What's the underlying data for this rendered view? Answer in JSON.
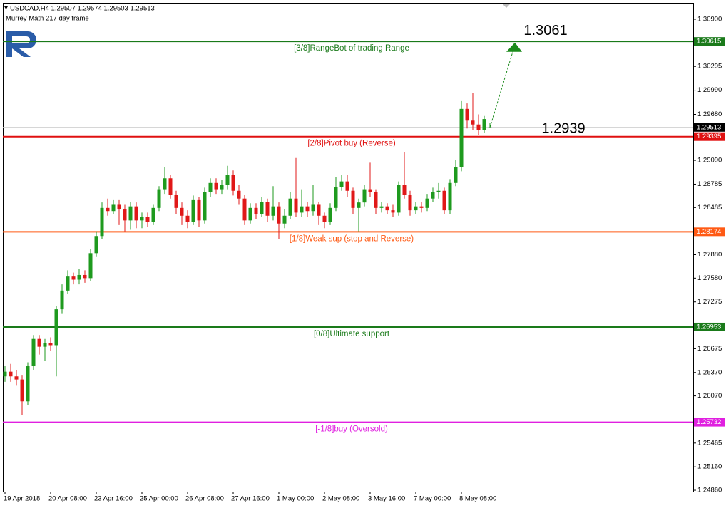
{
  "chart_data": {
    "type": "candlestick",
    "title": "USDCAD,H4  1.29507 1.29574 1.29503 1.29513",
    "subtitle": "Murrey Math 217 day frame",
    "x": [
      "19 Apr 2018",
      null,
      null,
      null,
      null,
      null,
      null,
      null,
      "20 Apr 08:00",
      null,
      null,
      null,
      null,
      null,
      null,
      null,
      "23 Apr 16:00",
      null,
      null,
      null,
      null,
      null,
      null,
      null,
      "25 Apr 00:00",
      null,
      null,
      null,
      null,
      null,
      null,
      null,
      "26 Apr 08:00",
      null,
      null,
      null,
      null,
      null,
      null,
      null,
      "27 Apr 16:00",
      null,
      null,
      null,
      null,
      null,
      null,
      null,
      "1 May 00:00",
      null,
      null,
      null,
      null,
      null,
      null,
      null,
      "2 May 08:00",
      null,
      null,
      null,
      null,
      null,
      null,
      null,
      "3 May 16:00",
      null,
      null,
      null,
      null,
      null,
      null,
      null,
      "7 May 00:00",
      null,
      null,
      null,
      null,
      null,
      null,
      null,
      "8 May 08:00",
      null,
      null,
      null,
      null,
      null
    ],
    "open": [
      1.2632,
      1.2638,
      1.2632,
      1.2628,
      1.26,
      1.2645,
      1.268,
      1.267,
      1.2675,
      1.2672,
      1.2718,
      1.2742,
      1.276,
      1.2756,
      1.2762,
      1.2758,
      1.279,
      1.2812,
      1.2848,
      1.2844,
      1.2852,
      1.2846,
      1.2832,
      1.285,
      1.2832,
      1.2836,
      1.283,
      1.2848,
      1.2872,
      1.2886,
      1.2865,
      1.2848,
      1.2838,
      1.283,
      1.2858,
      1.2832,
      1.2868,
      1.288,
      1.2872,
      1.2878,
      1.289,
      1.287,
      1.286,
      1.2832,
      1.2848,
      1.284,
      1.2856,
      1.2838,
      1.285,
      1.2828,
      1.2838,
      1.286,
      1.2842,
      1.285,
      1.2844,
      1.2852,
      1.2838,
      1.283,
      1.2848,
      1.2875,
      1.2882,
      1.287,
      1.2848,
      1.2855,
      1.2872,
      1.2868,
      1.2848,
      1.285,
      1.2845,
      1.2842,
      1.2878,
      1.2865,
      1.2845,
      1.285,
      1.2848,
      1.286,
      1.2868,
      1.287,
      1.2845,
      1.288,
      1.29,
      1.2975,
      1.296,
      1.2955,
      1.2948,
      1.29507
    ],
    "high": [
      1.2645,
      1.2648,
      1.264,
      1.2633,
      1.265,
      1.2685,
      1.2685,
      1.268,
      1.2682,
      1.2722,
      1.275,
      1.2768,
      1.2765,
      1.277,
      1.2768,
      1.2795,
      1.2818,
      1.2855,
      1.286,
      1.2858,
      1.2858,
      1.2852,
      1.2856,
      1.2855,
      1.2842,
      1.2842,
      1.2852,
      1.2876,
      1.29,
      1.289,
      1.287,
      1.2855,
      1.2845,
      1.2864,
      1.2862,
      1.2874,
      1.2886,
      1.2886,
      1.2884,
      1.2902,
      1.2896,
      1.2878,
      1.2865,
      1.2854,
      1.2854,
      1.2862,
      1.286,
      1.2876,
      1.2855,
      1.2846,
      1.2868,
      1.2912,
      1.2872,
      1.2856,
      1.2878,
      1.2856,
      1.2842,
      1.2854,
      1.2888,
      1.289,
      1.289,
      1.2874,
      1.286,
      1.2878,
      1.2906,
      1.2872,
      1.2856,
      1.2854,
      1.2852,
      1.2882,
      1.292,
      1.287,
      1.2856,
      1.2856,
      1.2866,
      1.2874,
      1.288,
      1.2874,
      1.2885,
      1.291,
      1.2985,
      1.2982,
      1.2995,
      1.2968,
      1.2966,
      1.29574
    ],
    "low": [
      1.2625,
      1.2625,
      1.262,
      1.2582,
      1.2595,
      1.264,
      1.266,
      1.2652,
      1.2665,
      1.2632,
      1.2712,
      1.2738,
      1.275,
      1.275,
      1.2752,
      1.2754,
      1.2785,
      1.2808,
      1.2838,
      1.284,
      1.2826,
      1.2818,
      1.282,
      1.2822,
      1.2822,
      1.2824,
      1.2826,
      1.2844,
      1.2866,
      1.286,
      1.284,
      1.2826,
      1.2822,
      1.2826,
      1.2824,
      1.2828,
      1.2862,
      1.2866,
      1.2866,
      1.2872,
      1.2864,
      1.2852,
      1.2826,
      1.2828,
      1.2834,
      1.2836,
      1.283,
      1.2832,
      1.2808,
      1.2822,
      1.2834,
      1.2836,
      1.2836,
      1.2836,
      1.2838,
      1.2826,
      1.2822,
      1.2826,
      1.2844,
      1.287,
      1.2862,
      1.284,
      1.2818,
      1.285,
      1.2862,
      1.284,
      1.2842,
      1.284,
      1.2836,
      1.2838,
      1.286,
      1.2838,
      1.284,
      1.2842,
      1.2844,
      1.2856,
      1.286,
      1.284,
      1.284,
      1.2876,
      1.2895,
      1.295,
      1.2948,
      1.2942,
      1.2944,
      1.29503
    ],
    "close": [
      1.2638,
      1.2632,
      1.2628,
      1.26,
      1.2645,
      1.268,
      1.267,
      1.2675,
      1.2672,
      1.2718,
      1.2742,
      1.276,
      1.2756,
      1.2762,
      1.2758,
      1.279,
      1.2812,
      1.2848,
      1.2844,
      1.2852,
      1.2846,
      1.2832,
      1.285,
      1.2832,
      1.2836,
      1.283,
      1.2848,
      1.2872,
      1.2886,
      1.2865,
      1.2848,
      1.2838,
      1.283,
      1.2858,
      1.2832,
      1.2868,
      1.288,
      1.2872,
      1.2878,
      1.289,
      1.287,
      1.286,
      1.2832,
      1.2848,
      1.284,
      1.2856,
      1.2838,
      1.285,
      1.2828,
      1.2838,
      1.286,
      1.2842,
      1.285,
      1.2844,
      1.2852,
      1.2838,
      1.283,
      1.2848,
      1.2875,
      1.2882,
      1.287,
      1.2848,
      1.2855,
      1.2872,
      1.2868,
      1.2848,
      1.285,
      1.2845,
      1.2842,
      1.2878,
      1.2865,
      1.2845,
      1.285,
      1.2848,
      1.286,
      1.2868,
      1.287,
      1.2845,
      1.288,
      1.29,
      1.2975,
      1.296,
      1.2955,
      1.2948,
      1.2962,
      1.29513
    ],
    "up_color": "#1e9a1e",
    "down_color": "#e01818",
    "ylim": [
      1.24842,
      1.3111
    ],
    "yticks": [
      {
        "value": 1.309,
        "label": "1.30900"
      },
      {
        "value": 1.30295,
        "label": "1.30295"
      },
      {
        "value": 1.2999,
        "label": "1.29990"
      },
      {
        "value": 1.2968,
        "label": "1.29680"
      },
      {
        "value": 1.2909,
        "label": "1.29090"
      },
      {
        "value": 1.28785,
        "label": "1.28785"
      },
      {
        "value": 1.28485,
        "label": "1.28485"
      },
      {
        "value": 1.2788,
        "label": "1.27880"
      },
      {
        "value": 1.2758,
        "label": "1.27580"
      },
      {
        "value": 1.27275,
        "label": "1.27275"
      },
      {
        "value": 1.26675,
        "label": "1.26675"
      },
      {
        "value": 1.2637,
        "label": "1.26370"
      },
      {
        "value": 1.2607,
        "label": "1.26070"
      },
      {
        "value": 1.25465,
        "label": "1.25465"
      },
      {
        "value": 1.2516,
        "label": "1.25160"
      },
      {
        "value": 1.2486,
        "label": "1.24860"
      }
    ],
    "levels": [
      {
        "value": 1.30615,
        "text": "[3/8]RangeBot of trading Range",
        "color": "#1a7a1a"
      },
      {
        "value": 1.29395,
        "text": "[2/8]Pivot buy (Reverse)",
        "color": "#e01010"
      },
      {
        "value": 1.28174,
        "text": "[1/8]Weak sup (stop and Reverse)",
        "color": "#ff5a14"
      },
      {
        "value": 1.26953,
        "text": "[0/8]Ultimate support",
        "color": "#1a7a1a"
      },
      {
        "value": 1.25732,
        "text": "[-1/8]buy (Oversold)",
        "color": "#e020e0"
      }
    ],
    "current_price": 1.29513,
    "targets": [
      1.3061,
      1.2939
    ],
    "arrow_color": "#1a8a1a"
  }
}
